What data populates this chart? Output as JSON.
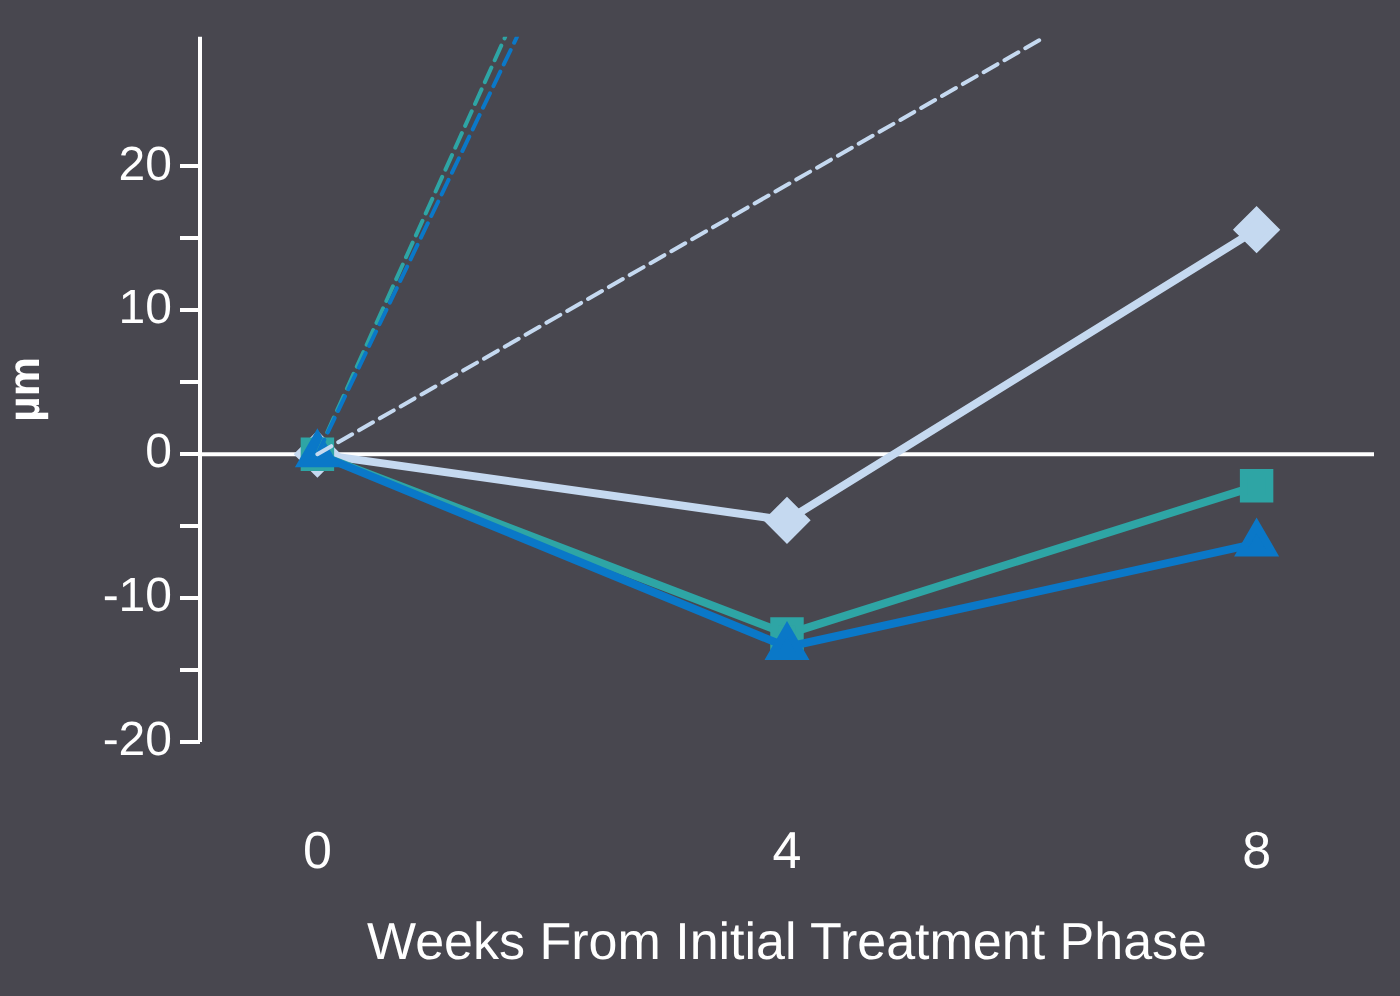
{
  "chart_data": {
    "type": "line",
    "xlabel": "Weeks From Initial Treatment Phase",
    "ylabel": "µm",
    "xlim": [
      -1,
      9
    ],
    "xticks": [
      0,
      4,
      8
    ],
    "ylim": [
      -20,
      29
    ],
    "yticks": [
      -20,
      {
        "value": -15,
        "label": null
      },
      -10,
      {
        "value": -5,
        "label": null
      },
      0,
      {
        "value": 5,
        "label": null
      },
      10,
      {
        "value": 15,
        "label": null
      },
      20
    ],
    "grid": false,
    "legend": false,
    "marker": "none",
    "ref_lines": [
      {
        "axis": "y",
        "value": 0,
        "color": "#ffffff"
      }
    ],
    "series": [
      {
        "color": "#c5d9f0",
        "x": [
          0,
          4,
          8
        ],
        "values": [
          0,
          -4.6,
          15.6
        ],
        "marker": "diamond"
      },
      {
        "color": "#2ea5a5",
        "x": [
          0,
          4,
          8
        ],
        "values": [
          0,
          -12.5,
          -2.2
        ],
        "marker": "square"
      },
      {
        "color": "#0a78c8",
        "x": [
          0,
          4,
          8
        ],
        "values": [
          0,
          -13.4,
          -6.2
        ],
        "marker": "triangle"
      },
      {
        "color": "#2ea5a5",
        "x": [
          0,
          1.6
        ],
        "values": [
          0,
          29
        ],
        "line_style": "dashed"
      },
      {
        "color": "#0a78c8",
        "x": [
          0,
          1.7
        ],
        "values": [
          0,
          29
        ],
        "line_style": "dashed"
      },
      {
        "color": "#c5d9f0",
        "x": [
          0,
          6.2
        ],
        "values": [
          0,
          29
        ],
        "line_style": "dashed"
      }
    ]
  }
}
